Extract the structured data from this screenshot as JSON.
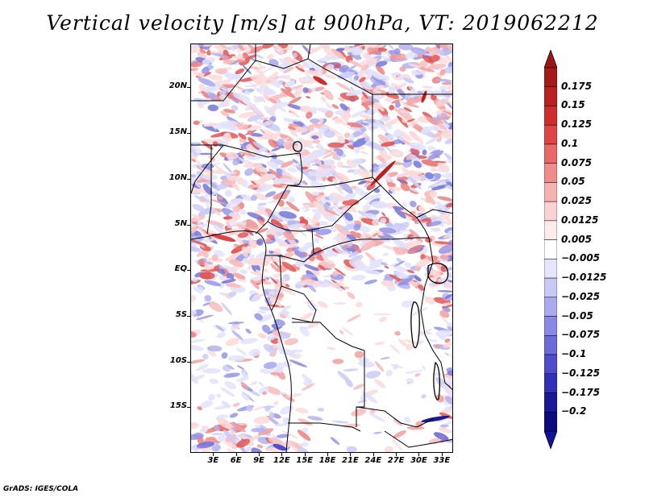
{
  "title": "Vertical velocity [m/s] at 900hPa, VT: 2019062212",
  "credit": "GrADS: IGES/COLA",
  "map": {
    "lat_labels": [
      "20N",
      "15N",
      "10N",
      "5N",
      "EQ",
      "5S",
      "10S",
      "15S"
    ],
    "lat_values": [
      20,
      15,
      10,
      5,
      0,
      -5,
      -10,
      -15
    ],
    "lon_labels": [
      "3E",
      "6E",
      "9E",
      "12E",
      "15E",
      "18E",
      "21E",
      "24E",
      "27E",
      "30E",
      "33E"
    ],
    "lon_values": [
      3,
      6,
      9,
      12,
      15,
      18,
      21,
      24,
      27,
      30,
      33
    ],
    "lat_range": [
      -20,
      24.8
    ],
    "lon_range": [
      0,
      34.5
    ]
  },
  "colorbar": {
    "labels": [
      "0.175",
      "0.15",
      "0.125",
      "0.1",
      "0.075",
      "0.05",
      "0.025",
      "0.0125",
      "0.005",
      "-0.005",
      "-0.0125",
      "-0.025",
      "-0.05",
      "-0.075",
      "-0.1",
      "-0.125",
      "-0.175",
      "-0.2"
    ],
    "colors": [
      "#a51b1b",
      "#b92121",
      "#d02c2c",
      "#e04545",
      "#ea6868",
      "#f08c8c",
      "#f6b1b1",
      "#fad2d2",
      "#fdeaea",
      "#ffffff",
      "#e5e5fd",
      "#c9c9f8",
      "#aaaaf0",
      "#8a8ae6",
      "#6b6bdb",
      "#4d4dce",
      "#3030b8",
      "#1a1a99",
      "#0c0c80"
    ],
    "top_arrow_color": "#9e1515",
    "bottom_arrow_color": "#12129a"
  }
}
